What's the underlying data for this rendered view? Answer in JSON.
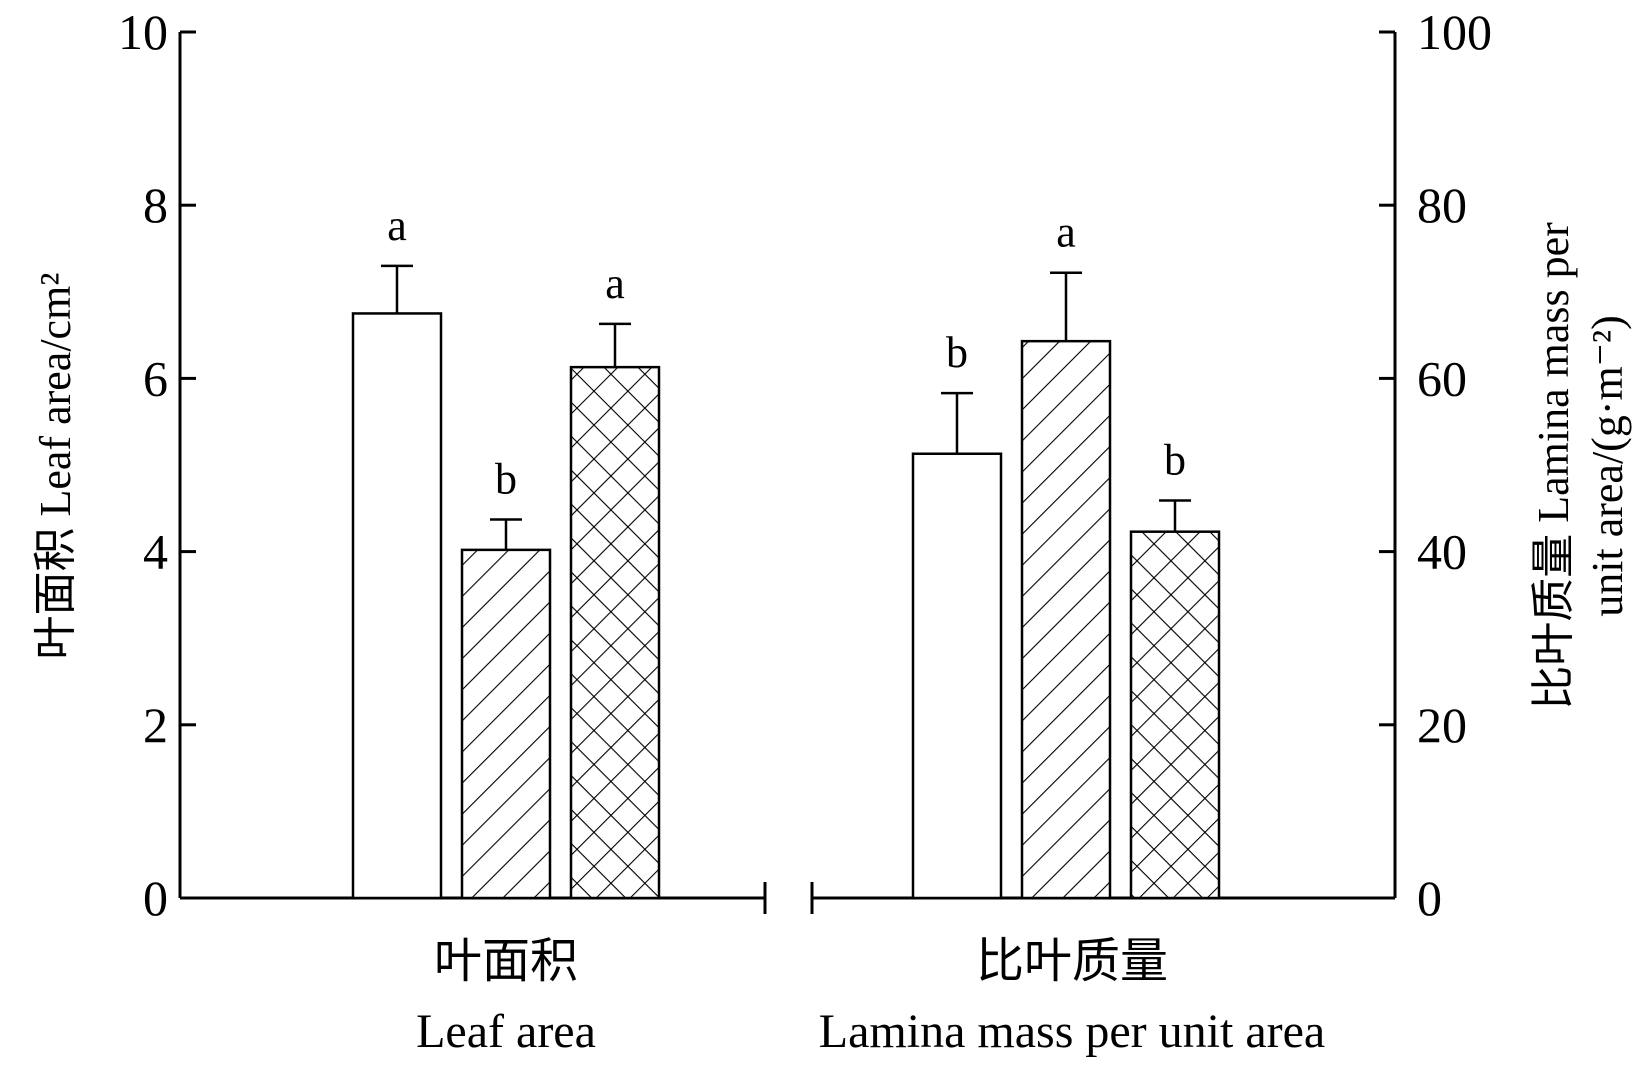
{
  "chart_data": {
    "type": "bar",
    "categories": [
      {
        "cn": "叶面积",
        "en": "Leaf area"
      },
      {
        "cn": "比叶质量",
        "en": "Lamina mass per unit area"
      }
    ],
    "left_axis": {
      "label": "叶面积 Leaf area/cm²",
      "ylim": [
        0,
        10
      ],
      "ticks": [
        "0",
        "2",
        "4",
        "6",
        "8",
        "10"
      ]
    },
    "right_axis": {
      "label_line1": "比叶质量 Lamina mass per",
      "label_line2": "unit area/(g·m⁻²)",
      "ylim": [
        0,
        100
      ],
      "ticks": [
        "0",
        "20",
        "40",
        "60",
        "80",
        "100"
      ]
    },
    "groups": [
      {
        "category": "叶面积",
        "axis": "left",
        "bars": [
          {
            "pattern": "open",
            "value": 6.75,
            "error": 0.55,
            "letter": "a"
          },
          {
            "pattern": "hatch",
            "value": 4.02,
            "error": 0.35,
            "letter": "b"
          },
          {
            "pattern": "crosshatch",
            "value": 6.13,
            "error": 0.5,
            "letter": "a"
          }
        ]
      },
      {
        "category": "比叶质量",
        "axis": "right",
        "bars": [
          {
            "pattern": "open",
            "value": 51.3,
            "error": 7.0,
            "letter": "b"
          },
          {
            "pattern": "hatch",
            "value": 64.3,
            "error": 7.9,
            "letter": "a"
          },
          {
            "pattern": "crosshatch",
            "value": 42.3,
            "error": 3.6,
            "letter": "b"
          }
        ]
      }
    ],
    "legend": "none",
    "grid": false,
    "axis_break": true
  },
  "colors": {
    "ink": "#000000",
    "bar_fill": "#ffffff"
  }
}
